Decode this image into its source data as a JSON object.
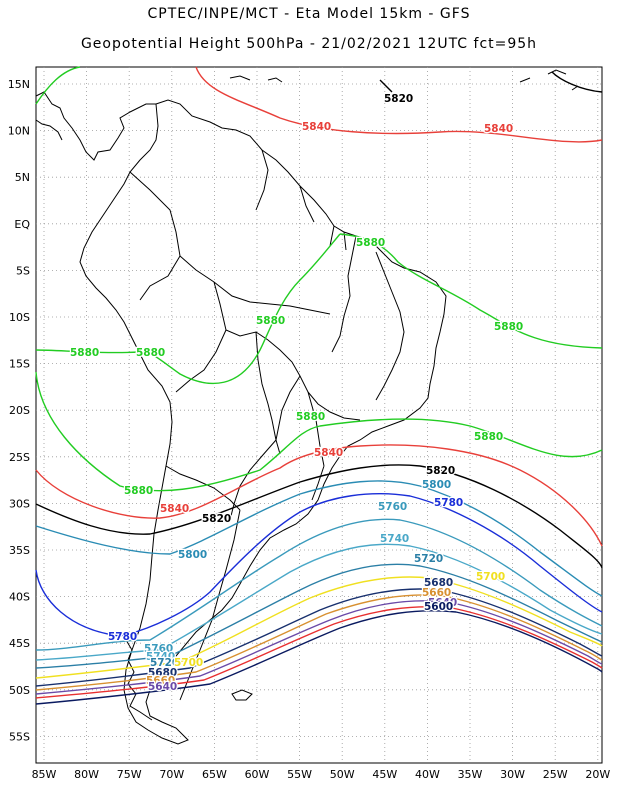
{
  "title_line1": "CPTEC/INPE/MCT  -   Eta Model 15km  -  GFS",
  "title_line2": "Geopotential Height 500hPa  -  21/02/2021 12UTC fct=95h",
  "lat_labels": [
    "15N",
    "10N",
    "5N",
    "EQ",
    "5S",
    "10S",
    "15S",
    "20S",
    "25S",
    "30S",
    "35S",
    "40S",
    "45S",
    "50S",
    "55S"
  ],
  "lon_labels": [
    "85W",
    "80W",
    "75W",
    "70W",
    "65W",
    "60W",
    "55W",
    "50W",
    "45W",
    "40W",
    "35W",
    "30W",
    "25W",
    "20W"
  ],
  "colors": {
    "c5880": "#22cc22",
    "c5840": "#e8403a",
    "c5820": "#000000",
    "c5800": "#2a8cb4",
    "c5780": "#1a2ed8",
    "c5760": "#3a9abc",
    "c5740": "#4aa8c8",
    "c5720": "#2b7fa6",
    "c5700": "#f0e020",
    "c5680": "#18306e",
    "c5660": "#d89030",
    "c5640": "#6a4aa8",
    "c5620": "#e83030",
    "c5600": "#0a1a60",
    "land": "#000000",
    "grid": "#999999"
  },
  "contour_labels": [
    {
      "text": "5820",
      "color": "c5820"
    },
    {
      "text": "5840",
      "color": "c5840"
    },
    {
      "text": "5840",
      "color": "c5840"
    },
    {
      "text": "5880",
      "color": "c5880"
    },
    {
      "text": "5880",
      "color": "c5880"
    },
    {
      "text": "5880",
      "color": "c5880"
    },
    {
      "text": "5880",
      "color": "c5880"
    },
    {
      "text": "5880",
      "color": "c5880"
    },
    {
      "text": "5880",
      "color": "c5880"
    },
    {
      "text": "5880",
      "color": "c5880"
    },
    {
      "text": "5840",
      "color": "c5840"
    },
    {
      "text": "5820",
      "color": "c5820"
    },
    {
      "text": "5880",
      "color": "c5880"
    },
    {
      "text": "5840",
      "color": "c5840"
    },
    {
      "text": "5820",
      "color": "c5820"
    },
    {
      "text": "5800",
      "color": "c5800"
    },
    {
      "text": "5760",
      "color": "c5760"
    },
    {
      "text": "5780",
      "color": "c5780"
    },
    {
      "text": "5800",
      "color": "c5800"
    },
    {
      "text": "5740",
      "color": "c5740"
    },
    {
      "text": "5720",
      "color": "c5720"
    },
    {
      "text": "5700",
      "color": "c5700"
    },
    {
      "text": "5680",
      "color": "c5680"
    },
    {
      "text": "5660",
      "color": "c5660"
    },
    {
      "text": "5640",
      "color": "c5640"
    },
    {
      "text": "5600",
      "color": "c5600"
    },
    {
      "text": "5780",
      "color": "c5780"
    },
    {
      "text": "5760",
      "color": "c5760"
    },
    {
      "text": "5740",
      "color": "c5740"
    },
    {
      "text": "5720",
      "color": "c5720"
    },
    {
      "text": "5700",
      "color": "c5700"
    },
    {
      "text": "5680",
      "color": "c5680"
    },
    {
      "text": "5660",
      "color": "c5660"
    },
    {
      "text": "5640",
      "color": "c5640"
    }
  ]
}
